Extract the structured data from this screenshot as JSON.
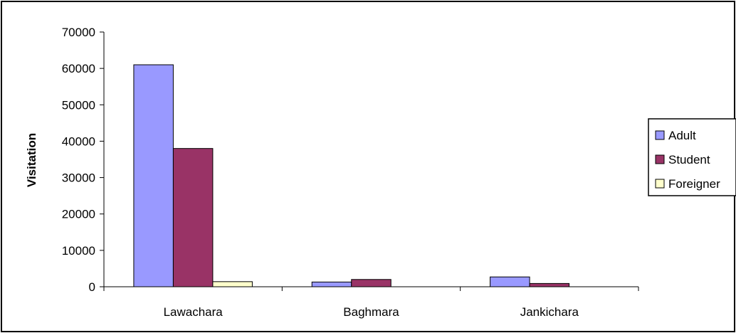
{
  "chart_data": {
    "type": "bar",
    "categories": [
      "Lawachara",
      "Baghmara",
      "Jankichara"
    ],
    "series": [
      {
        "name": "Adult",
        "values": [
          61000,
          1300,
          2700
        ],
        "color": "#9999ff"
      },
      {
        "name": "Student",
        "values": [
          38000,
          2000,
          900
        ],
        "color": "#993366"
      },
      {
        "name": "Foreigner",
        "values": [
          1400,
          0,
          0
        ],
        "color": "#ffffcc"
      }
    ],
    "title": "",
    "xlabel": "",
    "ylabel": "Visitation",
    "ylim": [
      0,
      70000
    ],
    "yticks": [
      0,
      10000,
      20000,
      30000,
      40000,
      50000,
      60000,
      70000
    ],
    "grid": false,
    "legend": "right"
  }
}
